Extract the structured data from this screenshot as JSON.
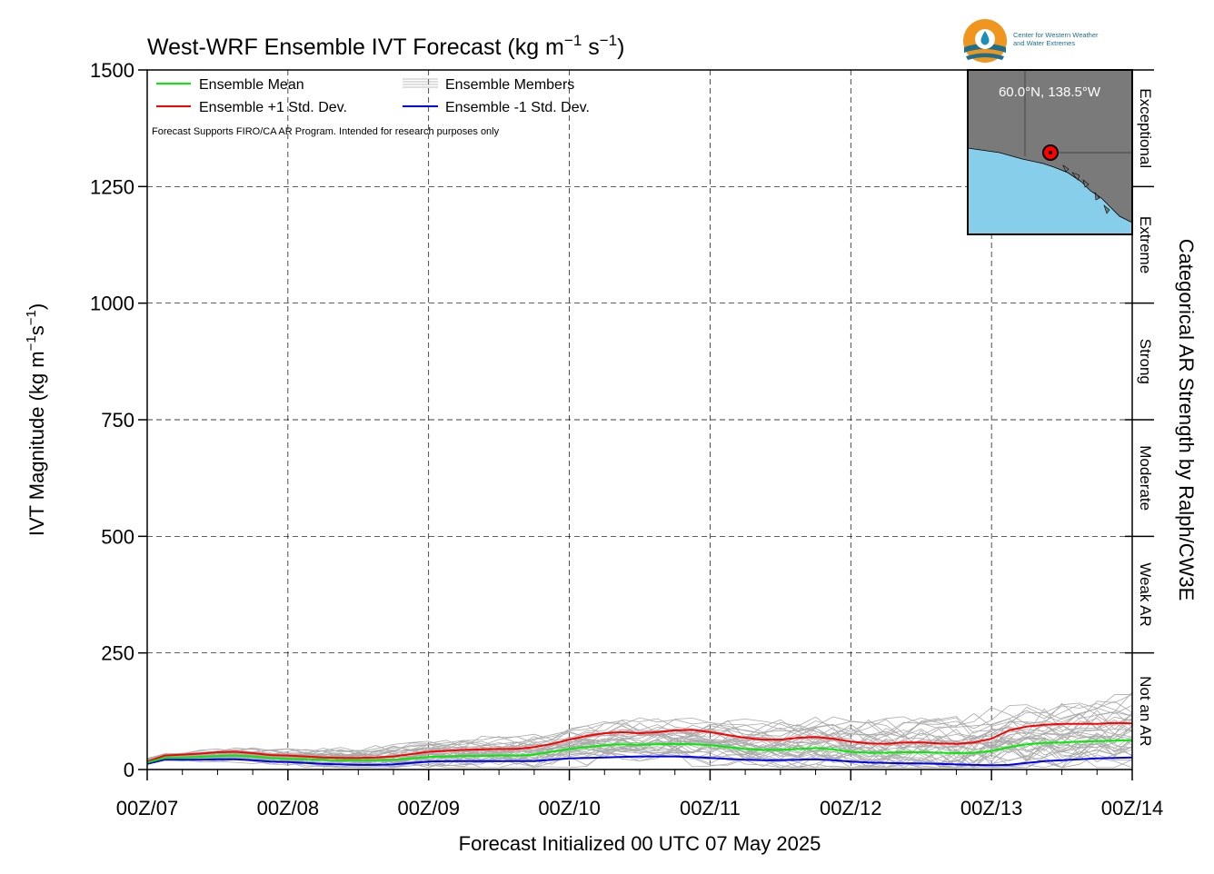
{
  "chart_data": {
    "type": "line",
    "title": "West-WRF Ensemble IVT Forecast (kg m",
    "title_sup1": "−1",
    "title_mid": " s",
    "title_sup2": "−1",
    "title_end": ")",
    "ylabel_main": "IVT Magnitude (kg m",
    "ylabel_sup1": "−1",
    "ylabel_mid": "s",
    "ylabel_sup2": "−1",
    "ylabel_end": ")",
    "xlabel": "Forecast Initialized 00 UTC 07 May 2025",
    "right_axis_title": "Categorical AR Strength by Ralph/CW3E",
    "note": "Forecast Supports FIRO/CA AR Program. Intended for research purposes only",
    "ylim": [
      0,
      1500
    ],
    "xlim": [
      0,
      168
    ],
    "grid": true,
    "legend_position": "top-left",
    "yticks": [
      "0",
      "250",
      "500",
      "750",
      "1000",
      "1250",
      "1500"
    ],
    "xticks": [
      "00Z/07",
      "00Z/08",
      "00Z/09",
      "00Z/10",
      "00Z/11",
      "00Z/12",
      "00Z/13",
      "00Z/14"
    ],
    "categories": [
      {
        "label": "Not an AR",
        "range": [
          0,
          250
        ]
      },
      {
        "label": "Weak AR",
        "range": [
          250,
          500
        ]
      },
      {
        "label": "Moderate",
        "range": [
          500,
          750
        ]
      },
      {
        "label": "Strong",
        "range": [
          750,
          1000
        ]
      },
      {
        "label": "Extreme",
        "range": [
          1000,
          1250
        ]
      },
      {
        "label": "Exceptional",
        "range": [
          1250,
          1500
        ]
      }
    ],
    "legend": [
      {
        "label": "Ensemble Mean",
        "color": "#00ee00"
      },
      {
        "label": "Ensemble +1 Std. Dev.",
        "color": "#ff0000"
      },
      {
        "label": "Ensemble Members",
        "color": "#aaaaaa"
      },
      {
        "label": "Ensemble -1 Std. Dev.",
        "color": "#0000ee"
      }
    ],
    "x": [
      0,
      3,
      6,
      9,
      12,
      15,
      18,
      21,
      24,
      27,
      30,
      33,
      36,
      39,
      42,
      45,
      48,
      51,
      54,
      57,
      60,
      63,
      66,
      69,
      72,
      75,
      78,
      81,
      84,
      87,
      90,
      93,
      96,
      99,
      102,
      105,
      108,
      111,
      114,
      117,
      120,
      123,
      126,
      129,
      132,
      135,
      138,
      141,
      144,
      147,
      150,
      153,
      156,
      159,
      162,
      165,
      168
    ],
    "series": [
      {
        "name": "Ensemble Mean",
        "color": "#00ee00",
        "values": [
          15,
          25,
          26,
          27,
          29,
          30,
          28,
          25,
          23,
          22,
          21,
          20,
          20,
          20,
          21,
          24,
          27,
          28,
          29,
          29,
          30,
          30,
          32,
          38,
          44,
          48,
          52,
          54,
          53,
          54,
          55,
          54,
          52,
          48,
          44,
          42,
          42,
          44,
          46,
          43,
          38,
          36,
          36,
          37,
          37,
          36,
          35,
          36,
          40,
          48,
          54,
          57,
          58,
          60,
          61,
          62,
          63
        ]
      },
      {
        "name": "Ensemble +1 Std. Dev.",
        "color": "#ff0000",
        "values": [
          17,
          30,
          32,
          34,
          37,
          38,
          35,
          31,
          30,
          28,
          26,
          25,
          25,
          26,
          28,
          33,
          38,
          40,
          42,
          43,
          44,
          44,
          48,
          55,
          64,
          72,
          78,
          80,
          78,
          80,
          84,
          85,
          80,
          74,
          68,
          64,
          64,
          68,
          70,
          66,
          60,
          56,
          55,
          58,
          58,
          56,
          55,
          58,
          66,
          84,
          92,
          96,
          98,
          98,
          98,
          100,
          99
        ]
      },
      {
        "name": "Ensemble -1 Std. Dev.",
        "color": "#0000ee",
        "values": [
          12,
          21,
          21,
          21,
          22,
          22,
          20,
          17,
          16,
          14,
          12,
          11,
          10,
          10,
          11,
          14,
          17,
          18,
          18,
          18,
          18,
          18,
          18,
          21,
          24,
          25,
          26,
          27,
          28,
          28,
          28,
          27,
          25,
          23,
          21,
          20,
          20,
          21,
          22,
          20,
          17,
          15,
          14,
          13,
          13,
          12,
          11,
          10,
          9,
          10,
          14,
          18,
          20,
          22,
          24,
          25,
          26
        ]
      }
    ],
    "member_envelope": {
      "name": "Ensemble Members",
      "color": "#aaaaaa",
      "count": 40,
      "max_approx": 210
    }
  },
  "inset_map": {
    "label": "60.0°N, 138.5°W",
    "lat": 60.0,
    "lon": -138.5,
    "land_color": "#7a7a7a",
    "ocean_color": "#87ceeb"
  },
  "logo": {
    "line1": "Center for Western Weather",
    "line2": "and Water Extremes"
  }
}
